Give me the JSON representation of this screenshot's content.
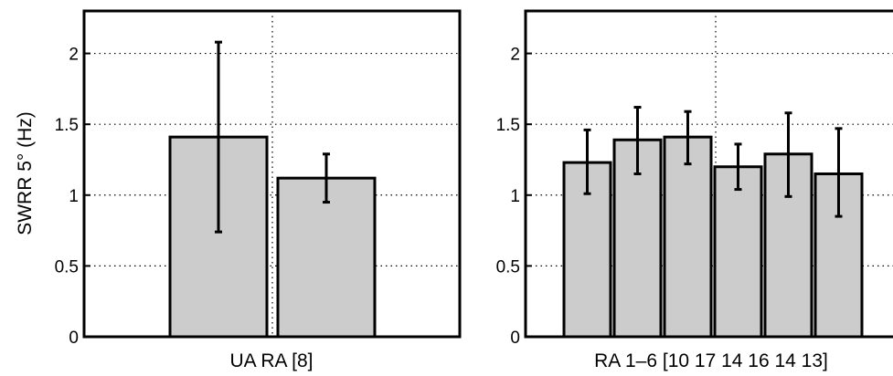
{
  "ylabel": "SWRR 5° (Hz)",
  "chart_data": [
    {
      "type": "bar",
      "xlabel": "UA RA [8]",
      "ylim": [
        0,
        2.3
      ],
      "yticks": [
        0,
        0.5,
        1,
        1.5,
        2
      ],
      "ytick_labels": [
        "0",
        "0.5",
        "1",
        "1.5",
        "2"
      ],
      "grid": "dotted",
      "bar_color": "#cccccc",
      "bars": [
        {
          "value": 1.41,
          "err_low": 0.74,
          "err_high": 2.08
        },
        {
          "value": 1.12,
          "err_low": 0.95,
          "err_high": 1.29
        }
      ]
    },
    {
      "type": "bar",
      "xlabel": "RA 1–6 [10 17 14 16 14 13]",
      "ylim": [
        0,
        2.3
      ],
      "yticks": [
        0,
        0.5,
        1,
        1.5,
        2
      ],
      "ytick_labels": [
        "0",
        "0.5",
        "1",
        "1.5",
        "2"
      ],
      "grid": "dotted",
      "bar_color": "#cccccc",
      "bars": [
        {
          "value": 1.23,
          "err_low": 1.01,
          "err_high": 1.46
        },
        {
          "value": 1.39,
          "err_low": 1.15,
          "err_high": 1.62
        },
        {
          "value": 1.41,
          "err_low": 1.22,
          "err_high": 1.59
        },
        {
          "value": 1.2,
          "err_low": 1.04,
          "err_high": 1.36
        },
        {
          "value": 1.29,
          "err_low": 0.99,
          "err_high": 1.58
        },
        {
          "value": 1.15,
          "err_low": 0.85,
          "err_high": 1.47
        }
      ]
    }
  ]
}
